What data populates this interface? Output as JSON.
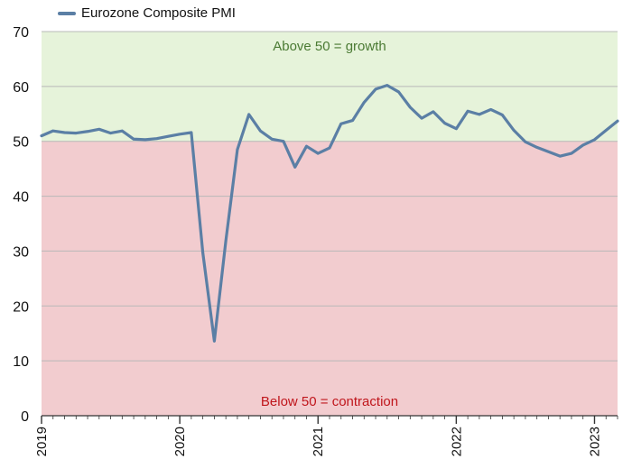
{
  "chart_data": {
    "type": "line",
    "series": [
      {
        "name": "Eurozone Composite PMI",
        "color": "#5b7fa5",
        "x": [
          "2019-01",
          "2019-02",
          "2019-03",
          "2019-04",
          "2019-05",
          "2019-06",
          "2019-07",
          "2019-08",
          "2019-09",
          "2019-10",
          "2019-11",
          "2019-12",
          "2020-01",
          "2020-02",
          "2020-03",
          "2020-04",
          "2020-05",
          "2020-06",
          "2020-07",
          "2020-08",
          "2020-09",
          "2020-10",
          "2020-11",
          "2020-12",
          "2021-01",
          "2021-02",
          "2021-03",
          "2021-04",
          "2021-05",
          "2021-06",
          "2021-07",
          "2021-08",
          "2021-09",
          "2021-10",
          "2021-11",
          "2021-12",
          "2022-01",
          "2022-02",
          "2022-03",
          "2022-04",
          "2022-05",
          "2022-06",
          "2022-07",
          "2022-08",
          "2022-09",
          "2022-10",
          "2022-11",
          "2022-12",
          "2023-01",
          "2023-02",
          "2023-03"
        ],
        "values": [
          51.0,
          51.9,
          51.6,
          51.5,
          51.8,
          52.2,
          51.5,
          51.9,
          50.4,
          50.3,
          50.5,
          50.9,
          51.3,
          51.6,
          29.7,
          13.6,
          31.9,
          48.5,
          54.9,
          51.9,
          50.4,
          50.0,
          45.3,
          49.1,
          47.8,
          48.8,
          53.2,
          53.8,
          57.1,
          59.5,
          60.2,
          59.0,
          56.2,
          54.2,
          55.4,
          53.3,
          52.3,
          55.5,
          54.9,
          55.8,
          54.8,
          52.0,
          49.9,
          48.9,
          48.1,
          47.3,
          47.8,
          49.3,
          50.3,
          52.0,
          53.7
        ]
      }
    ],
    "xlabel": "",
    "ylabel": "",
    "ylim": [
      0,
      70
    ],
    "yticks": [
      0,
      10,
      20,
      30,
      40,
      50,
      60,
      70
    ],
    "xticks": [
      "2019",
      "2020",
      "2021",
      "2022",
      "2023"
    ],
    "xlim": [
      "2019-01",
      "2023-03"
    ],
    "grid": true,
    "legend_position": "top-left",
    "threshold": 50,
    "bands": [
      {
        "label": "Above 50 = growth",
        "color": "#e6f3da",
        "text_color": "#4a7a33"
      },
      {
        "label": "Below 50 = contraction",
        "color": "#f2cccf",
        "text_color": "#c0161c"
      }
    ]
  }
}
